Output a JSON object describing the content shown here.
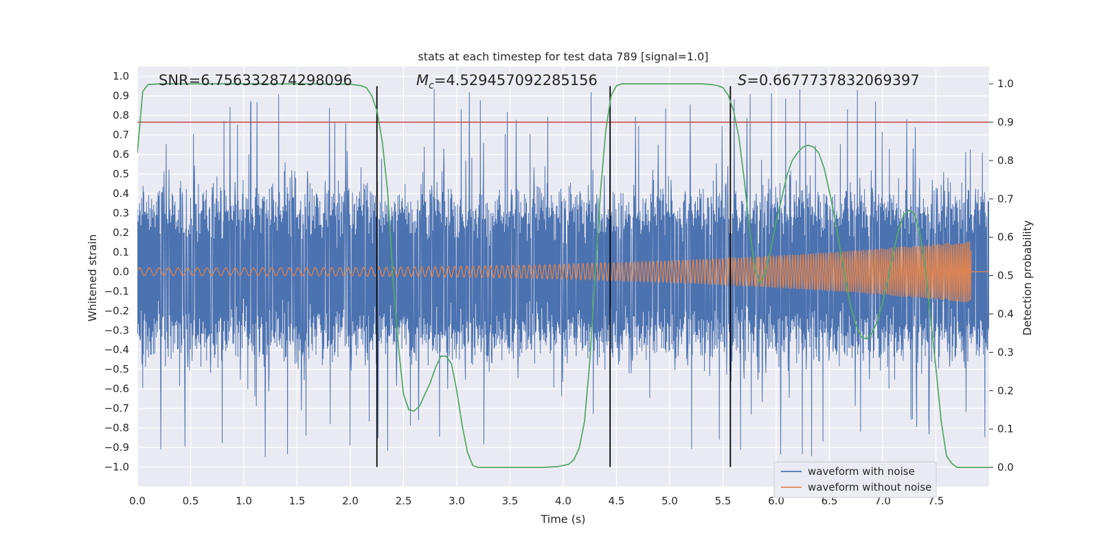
{
  "chart_data": {
    "type": "line",
    "title": "stats at each timestep for test data 789 [signal=1.0]",
    "xlabel": "Time (s)",
    "ylabel": "Whitened strain",
    "y2label": "Detection probability",
    "xlim": [
      0.0,
      8.0
    ],
    "ylim": [
      -1.1,
      1.05
    ],
    "y2lim": [
      -0.05,
      1.045
    ],
    "xticks": [
      "0.0",
      "0.5",
      "1.0",
      "1.5",
      "2.0",
      "2.5",
      "3.0",
      "3.5",
      "4.0",
      "4.5",
      "5.0",
      "5.5",
      "6.0",
      "6.5",
      "7.0",
      "7.5"
    ],
    "xtick_values": [
      0.0,
      0.5,
      1.0,
      1.5,
      2.0,
      2.5,
      3.0,
      3.5,
      4.0,
      4.5,
      5.0,
      5.5,
      6.0,
      6.5,
      7.0,
      7.5
    ],
    "yticks": [
      "1.0",
      "0.9",
      "0.8",
      "0.7",
      "0.6",
      "0.5",
      "0.4",
      "0.3",
      "0.2",
      "0.1",
      "0.0",
      "−0.1",
      "−0.2",
      "−0.3",
      "−0.4",
      "−0.5",
      "−0.6",
      "−0.7",
      "−0.8",
      "−0.9",
      "−1.0"
    ],
    "ytick_values": [
      1.0,
      0.9,
      0.8,
      0.7,
      0.6,
      0.5,
      0.4,
      0.3,
      0.2,
      0.1,
      0.0,
      -0.1,
      -0.2,
      -0.3,
      -0.4,
      -0.5,
      -0.6,
      -0.7,
      -0.8,
      -0.9,
      -1.0
    ],
    "y2ticks": [
      "1.0",
      "0.9",
      "0.8",
      "0.7",
      "0.6",
      "0.5",
      "0.4",
      "0.3",
      "0.2",
      "0.1",
      "0.0"
    ],
    "y2tick_values": [
      1.0,
      0.9,
      0.8,
      0.7,
      0.6,
      0.5,
      0.4,
      0.3,
      0.2,
      0.1,
      0.0
    ],
    "annotations": {
      "snr": "SNR=6.756332874298096",
      "mc_symbol": "M",
      "mc_sub": "c",
      "mc_value": "=4.529457092285156",
      "s_symbol": "S",
      "s_value": "=0.6677737832069397"
    },
    "threshold": {
      "value": 0.9,
      "axis": "y2",
      "color": "#c44e52"
    },
    "vertical_lines": [
      2.25,
      4.44,
      5.57
    ],
    "vertical_line_ylim": [
      -1.0,
      0.95
    ],
    "series": [
      {
        "name": "waveform with noise",
        "color": "#4c72b0",
        "axis": "y",
        "kind": "noise",
        "t_end": 8.0,
        "samples": 2400,
        "spike_amplitude_max": 0.95,
        "baseline_band": [
          -0.4,
          0.38
        ]
      },
      {
        "name": "waveform without noise",
        "color": "#dd8452",
        "axis": "y",
        "kind": "chirp",
        "t_start": 0.0,
        "t_end": 7.83,
        "amplitude_start": 0.02,
        "amplitude_end": 0.16,
        "freq_start": 11,
        "freq_end": 60
      },
      {
        "name": "detection probability",
        "color": "#55a868",
        "axis": "y2",
        "x": [
          0.0,
          0.05,
          0.1,
          0.2,
          0.5,
          1.0,
          1.5,
          2.0,
          2.1,
          2.15,
          2.2,
          2.25,
          2.3,
          2.35,
          2.4,
          2.45,
          2.5,
          2.55,
          2.6,
          2.65,
          2.7,
          2.75,
          2.8,
          2.85,
          2.9,
          2.95,
          3.0,
          3.05,
          3.1,
          3.15,
          3.2,
          3.3,
          3.5,
          3.8,
          3.95,
          4.05,
          4.1,
          4.15,
          4.2,
          4.25,
          4.3,
          4.35,
          4.4,
          4.45,
          4.5,
          4.55,
          4.6,
          4.7,
          5.0,
          5.3,
          5.4,
          5.45,
          5.5,
          5.55,
          5.6,
          5.65,
          5.7,
          5.75,
          5.8,
          5.85,
          5.9,
          5.95,
          6.0,
          6.05,
          6.1,
          6.15,
          6.2,
          6.25,
          6.3,
          6.35,
          6.4,
          6.45,
          6.5,
          6.55,
          6.6,
          6.65,
          6.7,
          6.75,
          6.8,
          6.85,
          6.9,
          6.95,
          7.0,
          7.05,
          7.1,
          7.15,
          7.2,
          7.25,
          7.3,
          7.35,
          7.4,
          7.45,
          7.5,
          7.55,
          7.6,
          7.65,
          7.7,
          7.75,
          7.8,
          7.85,
          7.9,
          7.95,
          8.0
        ],
        "y": [
          0.82,
          0.98,
          0.998,
          1.0,
          1.0,
          1.0,
          1.0,
          0.999,
          0.995,
          0.99,
          0.97,
          0.93,
          0.85,
          0.72,
          0.5,
          0.32,
          0.19,
          0.15,
          0.147,
          0.16,
          0.19,
          0.22,
          0.26,
          0.29,
          0.29,
          0.27,
          0.2,
          0.11,
          0.04,
          0.005,
          0.0,
          0.0,
          0.0,
          0.0,
          0.002,
          0.008,
          0.02,
          0.05,
          0.12,
          0.28,
          0.5,
          0.72,
          0.88,
          0.97,
          0.995,
          1.0,
          1.0,
          1.0,
          1.0,
          1.0,
          0.998,
          0.995,
          0.99,
          0.97,
          0.93,
          0.86,
          0.75,
          0.62,
          0.52,
          0.48,
          0.51,
          0.57,
          0.64,
          0.7,
          0.76,
          0.8,
          0.82,
          0.835,
          0.84,
          0.835,
          0.82,
          0.78,
          0.72,
          0.65,
          0.57,
          0.49,
          0.42,
          0.37,
          0.34,
          0.335,
          0.35,
          0.38,
          0.43,
          0.49,
          0.56,
          0.62,
          0.66,
          0.67,
          0.66,
          0.61,
          0.52,
          0.39,
          0.26,
          0.12,
          0.03,
          0.01,
          0.0,
          0.0,
          0.0,
          0.0,
          0.0,
          0.0,
          0.0
        ]
      }
    ],
    "legend": {
      "placement": "lower-right",
      "entries": [
        {
          "label": "waveform with noise",
          "color": "#4c72b0"
        },
        {
          "label": "waveform without noise",
          "color": "#dd8452"
        }
      ]
    },
    "style": {
      "plot_background": "#eaeaf2",
      "grid_color": "#ffffff",
      "text_color": "#262626"
    }
  }
}
